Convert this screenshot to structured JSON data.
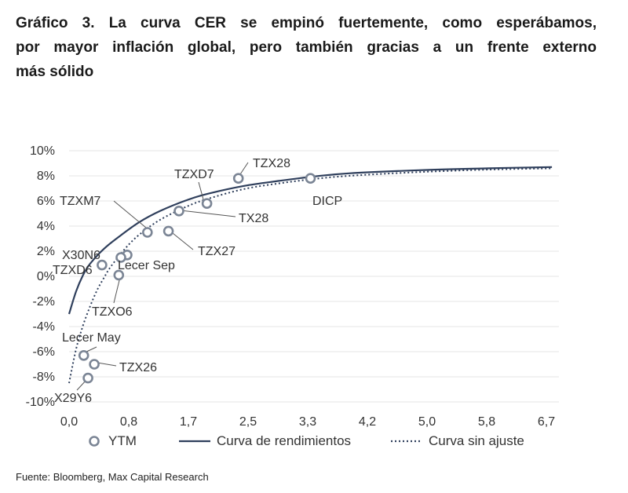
{
  "title_lines": [
    "Gráfico 3. La curva CER se empinó fuertemente, como esperábamos,",
    "por mayor inflación global, pero también gracias a un frente externo",
    "más sólido"
  ],
  "source": "Fuente: Bloomberg, Max Capital Research",
  "colors": {
    "line": "#2f3f5c",
    "marker": "#7b8595",
    "axis_text": "#333333"
  },
  "chart_data": {
    "type": "scatter",
    "x_ticks": [
      "0,0",
      "0,8",
      "1,7",
      "2,5",
      "3,3",
      "4,2",
      "5,0",
      "5,8",
      "6,7"
    ],
    "y_ticks": [
      "10%",
      "8%",
      "6%",
      "4%",
      "2%",
      "0%",
      "-2%",
      "-4%",
      "-6%",
      "-8%",
      "-10%"
    ],
    "xlim": [
      0,
      7.0
    ],
    "ylim": [
      -10,
      10
    ],
    "points": [
      {
        "label": "TZX28",
        "x": 2.42,
        "y": 7.8
      },
      {
        "label": "DICP",
        "x": 3.45,
        "y": 7.8
      },
      {
        "label": "TZXD7",
        "x": 1.97,
        "y": 5.8
      },
      {
        "label": "TX28",
        "x": 1.57,
        "y": 5.2
      },
      {
        "label": "TZXM7",
        "x": 1.12,
        "y": 3.5
      },
      {
        "label": "TZX27",
        "x": 1.42,
        "y": 3.6
      },
      {
        "label": "X30N6",
        "x": 0.83,
        "y": 1.7
      },
      {
        "label": "Lecer Sep",
        "x": 0.74,
        "y": 1.5
      },
      {
        "label": "TZXD6",
        "x": 0.47,
        "y": 0.9
      },
      {
        "label": "TZXO6",
        "x": 0.71,
        "y": 0.1
      },
      {
        "label": "Lecer May",
        "x": 0.21,
        "y": -6.3
      },
      {
        "label": "TZX26",
        "x": 0.36,
        "y": -7.0
      },
      {
        "label": "X29Y6",
        "x": 0.27,
        "y": -8.1
      }
    ],
    "series": [
      {
        "name": "Curva de rendimientos",
        "style": "solid",
        "x": [
          0.0,
          0.1,
          0.2,
          0.3,
          0.5,
          0.7,
          1.0,
          1.3,
          1.7,
          2.0,
          2.5,
          3.0,
          3.5,
          4.0,
          5.0,
          6.0,
          6.9
        ],
        "y": [
          -3.0,
          -1.2,
          0.1,
          1.0,
          2.2,
          3.1,
          4.3,
          5.2,
          6.1,
          6.6,
          7.2,
          7.6,
          7.95,
          8.2,
          8.45,
          8.6,
          8.7
        ]
      },
      {
        "name": "Curva sin ajuste",
        "style": "dotted",
        "x": [
          0.0,
          0.1,
          0.2,
          0.3,
          0.4,
          0.5,
          0.6,
          0.8,
          1.0,
          1.3,
          1.7,
          2.0,
          2.5,
          3.0,
          3.5,
          4.0,
          5.0,
          6.0,
          6.9
        ],
        "y": [
          -8.5,
          -5.8,
          -3.9,
          -2.4,
          -1.1,
          -0.1,
          0.8,
          2.2,
          3.3,
          4.5,
          5.6,
          6.2,
          6.95,
          7.4,
          7.75,
          8.0,
          8.3,
          8.5,
          8.6
        ]
      }
    ],
    "legend": [
      "YTM",
      "Curva de rendimientos",
      "Curva sin ajuste"
    ],
    "legend_position": "bottom"
  }
}
